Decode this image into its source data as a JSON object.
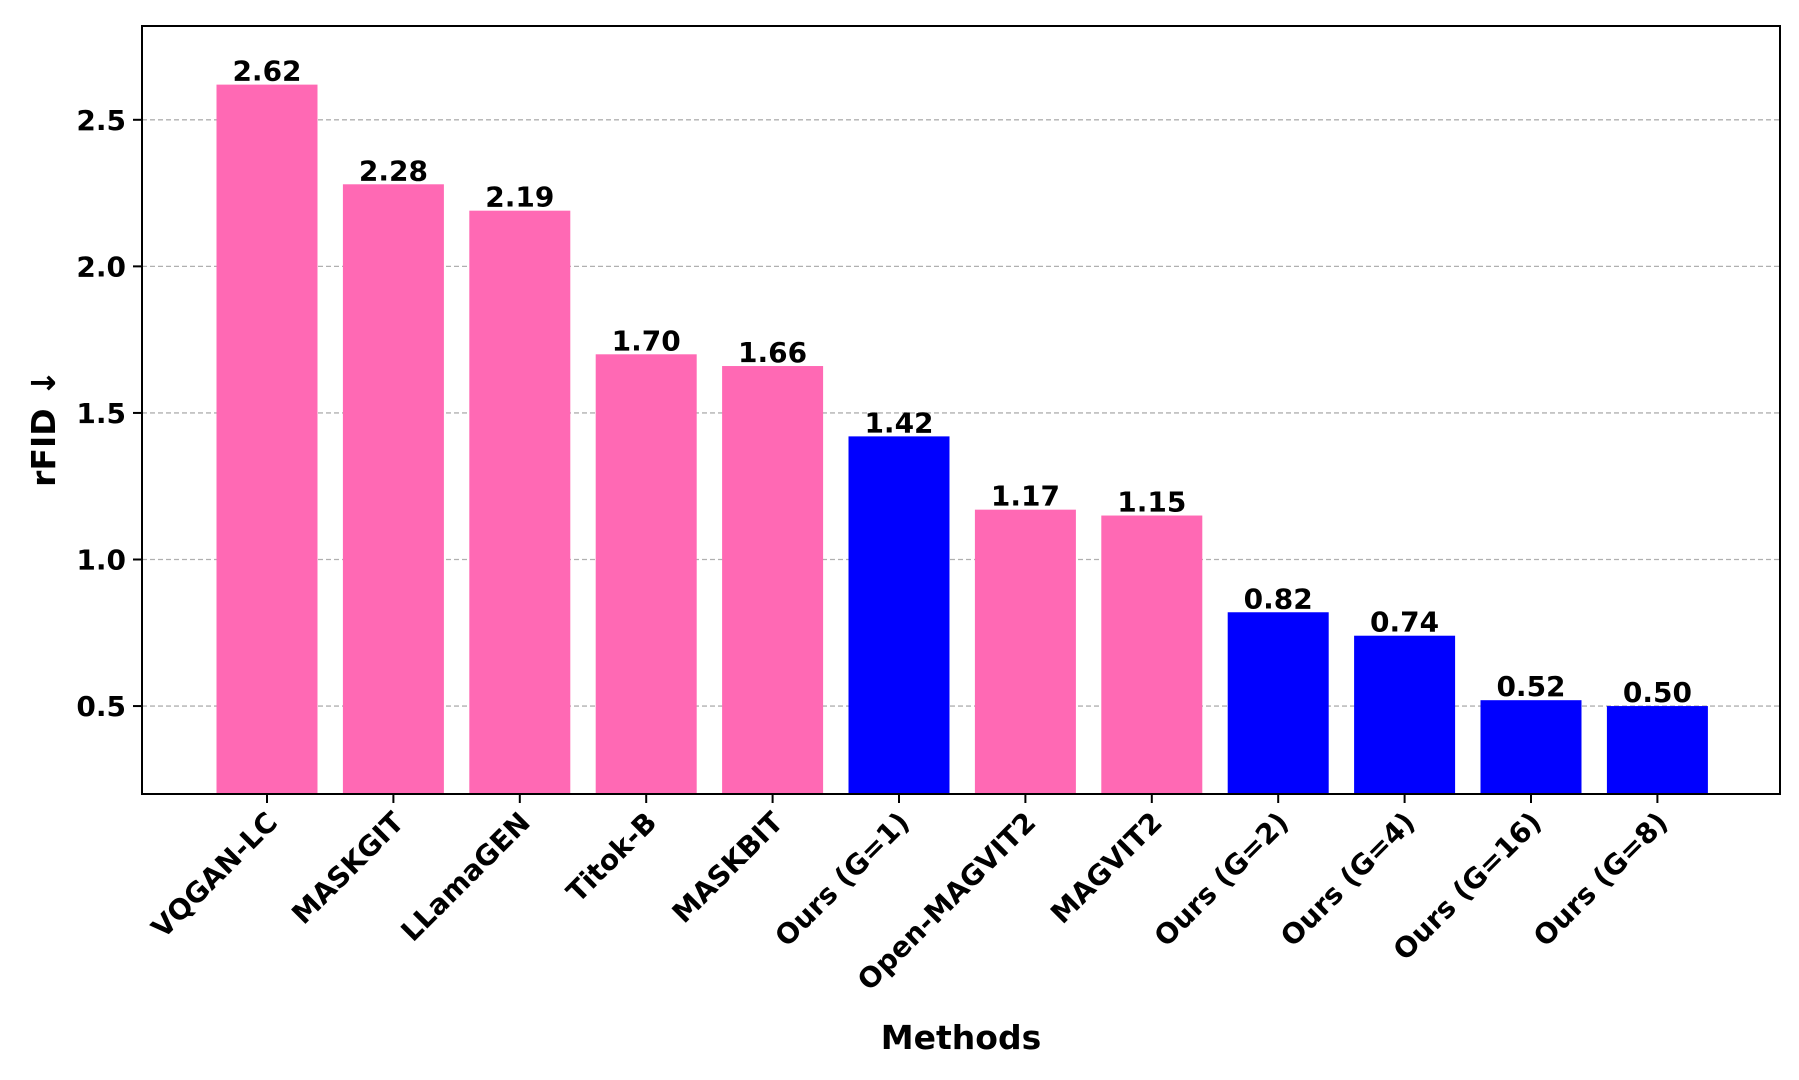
{
  "chart_data": {
    "type": "bar",
    "title": "",
    "xlabel": "Methods",
    "ylabel": "rFID ↓",
    "ylim": [
      0.2,
      2.82
    ],
    "yticks": [
      "0.5",
      "1.0",
      "1.5",
      "2.0",
      "2.5"
    ],
    "ytick_values": [
      0.5,
      1.0,
      1.5,
      2.0,
      2.5
    ],
    "grid": "horizontal dashed",
    "categories": [
      "VQGAN-LC",
      "MASKGIT",
      "LLamaGEN",
      "Titok-B",
      "MASKBIT",
      "Ours (G=1)",
      "Open-MAGVIT2",
      "MAGVIT2",
      "Ours (G=2)",
      "Ours (G=4)",
      "Ours (G=16)",
      "Ours (G=8)"
    ],
    "values": [
      2.62,
      2.28,
      2.19,
      1.7,
      1.66,
      1.42,
      1.17,
      1.15,
      0.82,
      0.74,
      0.52,
      0.5
    ],
    "value_labels": [
      "2.62",
      "2.28",
      "2.19",
      "1.70",
      "1.66",
      "1.42",
      "1.17",
      "1.15",
      "0.82",
      "0.74",
      "0.52",
      "0.50"
    ],
    "is_ours": [
      false,
      false,
      false,
      false,
      false,
      true,
      false,
      false,
      true,
      true,
      true,
      true
    ],
    "colors": {
      "baseline": "#ff69b4",
      "ours": "#0000ff",
      "grid": "#b0b0b0",
      "axis": "#000000"
    }
  }
}
